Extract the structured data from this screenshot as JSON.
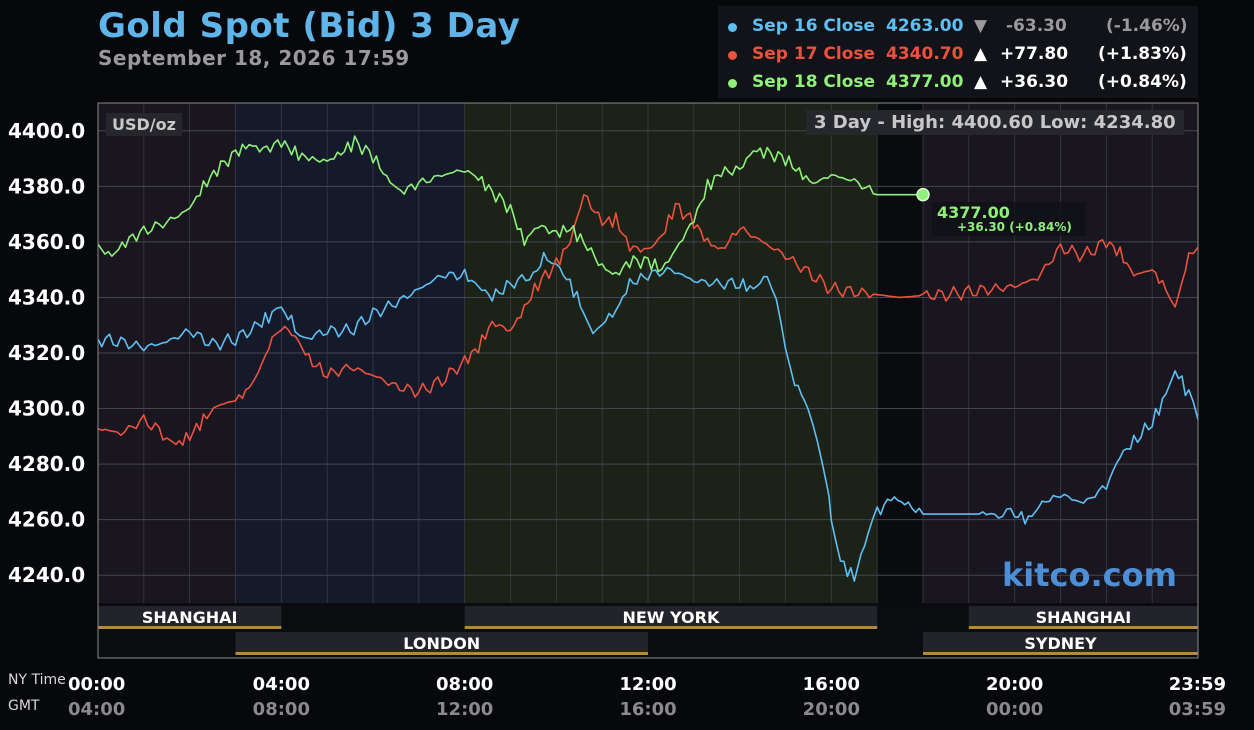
{
  "title": "Gold Spot (Bid) 3 Day",
  "subtitle": "September 18, 2026 17:59",
  "legend": [
    {
      "label": "Sep 16 Close",
      "price": "4263.00",
      "arrow": "▼",
      "change": "-63.30",
      "pct": "(-1.46%)",
      "color": "#5fbff2"
    },
    {
      "label": "Sep 17 Close",
      "price": "4340.70",
      "arrow": "▲",
      "change": "+77.80",
      "pct": "(+1.83%)",
      "color": "#e8523e"
    },
    {
      "label": "Sep 18 Close",
      "price": "4377.00",
      "arrow": "▲",
      "change": "+36.30",
      "pct": "(+0.84%)",
      "color": "#8ff07a"
    }
  ],
  "unit_label": "USD/oz",
  "high_low": "3 Day - High: 4400.60  Low: 4234.80",
  "end_value": "4377.00",
  "end_change": "+36.30 (+0.84%)",
  "watermark": "kitco.com",
  "row_labels": {
    "ny": "NY Time",
    "gmt": "GMT"
  },
  "sessions": {
    "top": [
      {
        "name": "SHANGHAI",
        "start": 0,
        "end": 4
      },
      {
        "name": "NEW YORK",
        "start": 8,
        "end": 17
      },
      {
        "name": "SHANGHAI",
        "start": 19,
        "end": 24
      }
    ],
    "bottom": [
      {
        "name": "LONDON",
        "start": 3,
        "end": 12
      },
      {
        "name": "SYDNEY",
        "start": 18,
        "end": 24
      }
    ]
  },
  "chart_data": {
    "type": "line",
    "x_unit": "hour (NY time)",
    "xlim": [
      0,
      24
    ],
    "ylim": [
      4230,
      4410
    ],
    "yticks": [
      "4400.0",
      "4380.0",
      "4360.0",
      "4340.0",
      "4320.0",
      "4300.0",
      "4280.0",
      "4260.0",
      "4240.0"
    ],
    "ytick_values": [
      4400,
      4380,
      4360,
      4340,
      4320,
      4300,
      4280,
      4260,
      4240
    ],
    "xticks_ny": [
      "00:00",
      "04:00",
      "08:00",
      "12:00",
      "16:00",
      "20:00",
      "23:59"
    ],
    "xticks_gmt": [
      "04:00",
      "08:00",
      "12:00",
      "16:00",
      "20:00",
      "00:00",
      "03:59"
    ],
    "xtick_values": [
      0,
      4,
      8,
      12,
      16,
      20,
      24
    ],
    "grid": true,
    "series": [
      {
        "name": "Sep 16 Close",
        "color": "#5fbff2",
        "points": [
          [
            0,
            4325
          ],
          [
            0.5,
            4324
          ],
          [
            1,
            4322
          ],
          [
            1.5,
            4324
          ],
          [
            2,
            4328
          ],
          [
            2.5,
            4323
          ],
          [
            3,
            4325
          ],
          [
            3.5,
            4330
          ],
          [
            3.8,
            4334
          ],
          [
            4,
            4336
          ],
          [
            4.3,
            4330
          ],
          [
            4.5,
            4325
          ],
          [
            5,
            4328
          ],
          [
            5.5,
            4328
          ],
          [
            6,
            4334
          ],
          [
            6.5,
            4338
          ],
          [
            7,
            4343
          ],
          [
            7.5,
            4348
          ],
          [
            8,
            4348
          ],
          [
            8.3,
            4344
          ],
          [
            8.6,
            4340
          ],
          [
            9,
            4345
          ],
          [
            9.5,
            4348
          ],
          [
            9.8,
            4356
          ],
          [
            10,
            4352
          ],
          [
            10.3,
            4345
          ],
          [
            10.6,
            4335
          ],
          [
            10.8,
            4327
          ],
          [
            11,
            4331
          ],
          [
            11.3,
            4335
          ],
          [
            11.6,
            4345
          ],
          [
            12,
            4348
          ],
          [
            12.5,
            4350
          ],
          [
            13,
            4346
          ],
          [
            13.5,
            4345
          ],
          [
            14,
            4345
          ],
          [
            14.3,
            4343
          ],
          [
            14.6,
            4348
          ],
          [
            14.8,
            4338
          ],
          [
            15,
            4320
          ],
          [
            15.2,
            4310
          ],
          [
            15.5,
            4300
          ],
          [
            15.7,
            4286
          ],
          [
            15.9,
            4272
          ],
          [
            16,
            4260
          ],
          [
            16.2,
            4245
          ],
          [
            16.5,
            4239
          ],
          [
            16.8,
            4255
          ],
          [
            17,
            4262
          ],
          [
            17.3,
            4268
          ],
          [
            17.6,
            4266
          ],
          [
            18,
            4262
          ],
          [
            18.5,
            4262
          ],
          [
            19,
            4262
          ],
          [
            19.3,
            4262
          ],
          [
            20,
            4262
          ],
          [
            20.3,
            4260
          ],
          [
            20.6,
            4266
          ],
          [
            21,
            4269
          ],
          [
            21.5,
            4266
          ],
          [
            22,
            4272
          ],
          [
            22.3,
            4283
          ],
          [
            22.6,
            4288
          ],
          [
            23,
            4295
          ],
          [
            23.3,
            4305
          ],
          [
            23.5,
            4314
          ],
          [
            23.8,
            4305
          ],
          [
            24,
            4296
          ]
        ]
      },
      {
        "name": "Sep 17 Close",
        "color": "#e8523e",
        "points": [
          [
            0,
            4293
          ],
          [
            0.5,
            4291
          ],
          [
            1,
            4296
          ],
          [
            1.5,
            4290
          ],
          [
            1.7,
            4287
          ],
          [
            2,
            4290
          ],
          [
            2.3,
            4296
          ],
          [
            2.6,
            4301
          ],
          [
            3,
            4303
          ],
          [
            3.3,
            4307
          ],
          [
            3.5,
            4313
          ],
          [
            3.8,
            4325
          ],
          [
            4,
            4330
          ],
          [
            4.3,
            4326
          ],
          [
            4.6,
            4318
          ],
          [
            5,
            4312
          ],
          [
            5.5,
            4315
          ],
          [
            6,
            4312
          ],
          [
            6.5,
            4308
          ],
          [
            7,
            4306
          ],
          [
            7.5,
            4310
          ],
          [
            8,
            4317
          ],
          [
            8.3,
            4322
          ],
          [
            8.6,
            4331
          ],
          [
            9,
            4328
          ],
          [
            9.3,
            4336
          ],
          [
            9.6,
            4345
          ],
          [
            10,
            4352
          ],
          [
            10.3,
            4360
          ],
          [
            10.6,
            4377
          ],
          [
            11,
            4367
          ],
          [
            11.3,
            4368
          ],
          [
            11.6,
            4358
          ],
          [
            12,
            4357
          ],
          [
            12.3,
            4362
          ],
          [
            12.6,
            4373
          ],
          [
            13,
            4367
          ],
          [
            13.3,
            4360
          ],
          [
            13.6,
            4357
          ],
          [
            14,
            4365
          ],
          [
            14.5,
            4360
          ],
          [
            15,
            4355
          ],
          [
            15.5,
            4349
          ],
          [
            16,
            4343
          ],
          [
            16.5,
            4342
          ],
          [
            17,
            4341
          ],
          [
            17.5,
            4340
          ],
          [
            18,
            4340.7
          ],
          [
            18.5,
            4341
          ],
          [
            19,
            4342
          ],
          [
            19.5,
            4343
          ],
          [
            20,
            4344
          ],
          [
            20.5,
            4347
          ],
          [
            21,
            4358
          ],
          [
            21.5,
            4355
          ],
          [
            22,
            4360
          ],
          [
            22.3,
            4356
          ],
          [
            22.6,
            4348
          ],
          [
            23,
            4350
          ],
          [
            23.3,
            4343
          ],
          [
            23.5,
            4336
          ],
          [
            23.8,
            4355
          ],
          [
            24,
            4358
          ]
        ]
      },
      {
        "name": "Sep 18 Close",
        "color": "#8ff07a",
        "points": [
          [
            0,
            4358
          ],
          [
            0.3,
            4355
          ],
          [
            0.6,
            4360
          ],
          [
            1,
            4364
          ],
          [
            1.5,
            4367
          ],
          [
            2,
            4372
          ],
          [
            2.3,
            4380
          ],
          [
            2.6,
            4386
          ],
          [
            3,
            4392
          ],
          [
            3.3,
            4395
          ],
          [
            3.6,
            4393
          ],
          [
            4,
            4396
          ],
          [
            4.3,
            4392
          ],
          [
            4.6,
            4390
          ],
          [
            5,
            4389
          ],
          [
            5.3,
            4392
          ],
          [
            5.6,
            4396
          ],
          [
            6,
            4391
          ],
          [
            6.3,
            4383
          ],
          [
            6.6,
            4378
          ],
          [
            7,
            4381
          ],
          [
            7.5,
            4384
          ],
          [
            8,
            4386
          ],
          [
            8.3,
            4383
          ],
          [
            8.6,
            4378
          ],
          [
            9,
            4372
          ],
          [
            9.3,
            4360
          ],
          [
            9.6,
            4366
          ],
          [
            10,
            4363
          ],
          [
            10.3,
            4365
          ],
          [
            10.6,
            4360
          ],
          [
            11,
            4351
          ],
          [
            11.3,
            4348
          ],
          [
            11.6,
            4353
          ],
          [
            12,
            4353
          ],
          [
            12.3,
            4350
          ],
          [
            12.6,
            4357
          ],
          [
            13,
            4368
          ],
          [
            13.3,
            4380
          ],
          [
            13.6,
            4385
          ],
          [
            14,
            4386
          ],
          [
            14.3,
            4393
          ],
          [
            14.6,
            4392
          ],
          [
            15,
            4390
          ],
          [
            15.3,
            4385
          ],
          [
            15.6,
            4381
          ],
          [
            16,
            4384
          ],
          [
            16.5,
            4382
          ],
          [
            17,
            4377
          ],
          [
            18,
            4377
          ]
        ]
      }
    ]
  }
}
